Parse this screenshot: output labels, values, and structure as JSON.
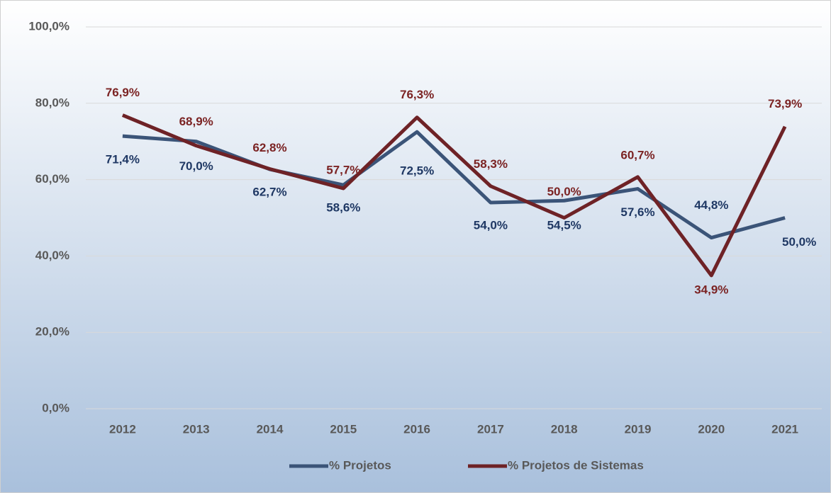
{
  "chart_data": {
    "type": "line",
    "categories": [
      "2012",
      "2013",
      "2014",
      "2015",
      "2016",
      "2017",
      "2018",
      "2019",
      "2020",
      "2021"
    ],
    "series": [
      {
        "name": "% Projetos",
        "color": "#3b5478",
        "label_color": "#1f3864",
        "values": [
          71.4,
          70.0,
          62.7,
          58.6,
          72.5,
          54.0,
          54.5,
          57.6,
          44.8,
          50.0
        ],
        "value_labels": [
          "71,4%",
          "70,0%",
          "62,7%",
          "58,6%",
          "72,5%",
          "54,0%",
          "54,5%",
          "57,6%",
          "44,8%",
          "50,0%"
        ]
      },
      {
        "name": "% Projetos de Sistemas",
        "color": "#6e2226",
        "label_color": "#7b2323",
        "values": [
          76.9,
          68.9,
          62.8,
          57.7,
          76.3,
          58.3,
          50.0,
          60.7,
          34.9,
          73.9
        ],
        "value_labels": [
          "76,9%",
          "68,9%",
          "62,8%",
          "57,7%",
          "76,3%",
          "58,3%",
          "50,0%",
          "60,7%",
          "34,9%",
          "73,9%"
        ]
      }
    ],
    "ylim": [
      0,
      100
    ],
    "yticks": [
      {
        "value": 0,
        "label": "0,0%"
      },
      {
        "value": 20,
        "label": "20,0%"
      },
      {
        "value": 40,
        "label": "40,0%"
      },
      {
        "value": 60,
        "label": "60,0%"
      },
      {
        "value": 80,
        "label": "80,0%"
      },
      {
        "value": 100,
        "label": "100,0%"
      }
    ],
    "grid": true,
    "legend": "bottom"
  }
}
